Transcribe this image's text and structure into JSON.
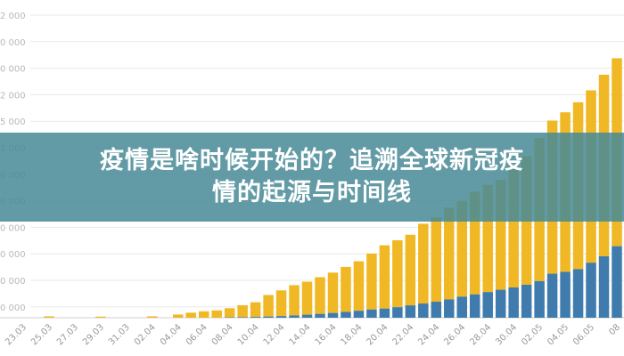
{
  "overlay": {
    "title_line1": "疫情是啥时候开始的？追溯全球新冠疫",
    "title_line2": "情的起源与时间线"
  },
  "colors": {
    "series_a": "#3f7cad",
    "series_b": "#efb824",
    "grid": "#e9e9e9",
    "banner": "#488a96"
  },
  "chart_data": {
    "type": "bar",
    "stacked": true,
    "yaxis_labels": [
      "2 000",
      "0 000",
      "0 000",
      "2 000",
      "5 000",
      "2 000",
      "0 000",
      "0 000",
      "0 000",
      "0 000",
      "0 000",
      "0 000"
    ],
    "ylim": [
      0,
      33000
    ],
    "grid": true,
    "x_tick_labels": [
      "23.03",
      "25.03",
      "27.03",
      "29.03",
      "31.03",
      "02.04",
      "04.04",
      "06.04",
      "08.04",
      "10.04",
      "12.04",
      "14.04",
      "16.04",
      "18.04",
      "20.04",
      "22.04",
      "24.04",
      "26.04",
      "28.04",
      "30.04",
      "02.05",
      "04.05",
      "06.05",
      "08"
    ],
    "categories": [
      "23.03",
      "24.03",
      "25.03",
      "26.03",
      "27.03",
      "28.03",
      "29.03",
      "30.03",
      "31.03",
      "01.04",
      "02.04",
      "03.04",
      "04.04",
      "05.04",
      "06.04",
      "07.04",
      "08.04",
      "09.04",
      "10.04",
      "11.04",
      "12.04",
      "13.04",
      "14.04",
      "15.04",
      "16.04",
      "17.04",
      "18.04",
      "19.04",
      "20.04",
      "21.04",
      "22.04",
      "23.04",
      "24.04",
      "25.04",
      "26.04",
      "27.04",
      "28.04",
      "29.04",
      "30.04",
      "01.05",
      "02.05",
      "03.05",
      "04.05",
      "05.05",
      "06.05",
      "07.05",
      "08.05"
    ],
    "series": [
      {
        "values": [
          0,
          0,
          0,
          0,
          0,
          0,
          0,
          0,
          0,
          0,
          0,
          0,
          0,
          0,
          0,
          0,
          40,
          60,
          90,
          130,
          180,
          250,
          330,
          420,
          520,
          640,
          760,
          900,
          1000,
          1150,
          1350,
          1550,
          1750,
          2000,
          2300,
          2550,
          2800,
          3050,
          3300,
          3600,
          4000,
          4800,
          5000,
          5300,
          6000,
          6700,
          7800
        ]
      },
      {
        "values": [
          0,
          0,
          150,
          0,
          0,
          0,
          120,
          0,
          0,
          0,
          150,
          0,
          350,
          550,
          700,
          800,
          1000,
          1300,
          1600,
          2350,
          2800,
          3300,
          3600,
          4000,
          4400,
          4900,
          5400,
          6100,
          6900,
          7300,
          7700,
          8700,
          9200,
          10000,
          10400,
          11200,
          11700,
          12000,
          13300,
          14000,
          15600,
          16700,
          17400,
          18200,
          18800,
          19800,
          20500
        ]
      }
    ]
  }
}
